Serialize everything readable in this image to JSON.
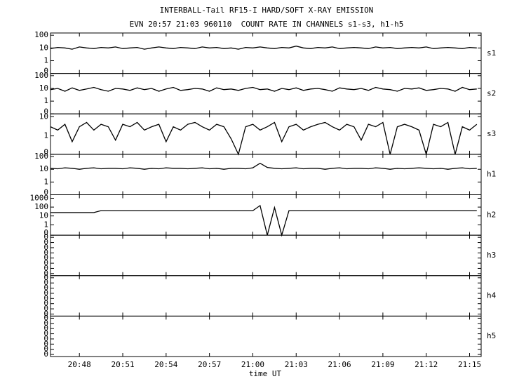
{
  "chart_data": {
    "type": "line",
    "title": "INTERBALL-Tail RF15-I HARD/SOFT X-RAY EMISSION",
    "subtitle": "EVN 20:57 21:03 960110  COUNT RATE IN CHANNELS s1-s3, h1-h5",
    "x_label": "time UT",
    "xlim": [
      46,
      75.8
    ],
    "xticks": [
      {
        "value": 48,
        "label": "20:48"
      },
      {
        "value": 51,
        "label": "20:51"
      },
      {
        "value": 54,
        "label": "20:54"
      },
      {
        "value": 57,
        "label": "20:57"
      },
      {
        "value": 60,
        "label": "21:00"
      },
      {
        "value": 63,
        "label": "21:03"
      },
      {
        "value": 66,
        "label": "21:06"
      },
      {
        "value": 69,
        "label": "21:09"
      },
      {
        "value": 72,
        "label": "21:12"
      },
      {
        "value": 75,
        "label": "21:15"
      }
    ],
    "log_scale": true,
    "color": "#000000",
    "x": [
      46,
      46.5,
      47,
      47.5,
      48,
      48.5,
      49,
      49.5,
      50,
      50.5,
      51,
      51.5,
      52,
      52.5,
      53,
      53.5,
      54,
      54.5,
      55,
      55.5,
      56,
      56.5,
      57,
      57.5,
      58,
      58.5,
      59,
      59.5,
      60,
      60.5,
      61,
      61.5,
      62,
      62.5,
      63,
      63.5,
      64,
      64.5,
      65,
      65.5,
      66,
      66.5,
      67,
      67.5,
      68,
      68.5,
      69,
      69.5,
      70,
      70.5,
      71,
      71.5,
      72,
      72.5,
      73,
      73.5,
      74,
      74.5,
      75,
      75.5
    ],
    "panels": [
      {
        "name": "s1",
        "ylim": [
          0.1,
          150
        ],
        "yticks": [
          0,
          1,
          10,
          100
        ],
        "values": [
          9,
          11,
          10,
          8,
          12,
          10,
          9,
          11,
          10,
          12,
          9,
          10,
          11,
          8,
          10,
          12,
          10,
          9,
          11,
          10,
          9,
          12,
          10,
          11,
          9,
          10,
          8,
          11,
          10,
          12,
          10,
          9,
          11,
          10,
          14,
          10,
          9,
          11,
          10,
          12,
          9,
          10,
          11,
          10,
          9,
          12,
          10,
          11,
          9,
          10,
          11,
          10,
          12,
          9,
          10,
          11,
          10,
          9,
          11,
          10
        ]
      },
      {
        "name": "s2",
        "ylim": [
          0.1,
          150
        ],
        "yticks": [
          0,
          1,
          10,
          100
        ],
        "values": [
          8,
          10,
          6,
          11,
          7,
          9,
          12,
          8,
          6,
          10,
          9,
          7,
          11,
          8,
          10,
          6,
          9,
          12,
          7,
          8,
          10,
          9,
          6,
          11,
          8,
          9,
          7,
          10,
          12,
          8,
          9,
          6,
          10,
          8,
          11,
          7,
          9,
          10,
          8,
          6,
          11,
          9,
          8,
          10,
          7,
          12,
          9,
          8,
          6,
          10,
          9,
          11,
          7,
          8,
          10,
          9,
          6,
          12,
          8,
          9
        ]
      },
      {
        "name": "s3",
        "ylim": [
          0.11,
          14
        ],
        "yticks": [
          0,
          1,
          10
        ],
        "values": [
          3,
          2,
          4,
          0.5,
          3,
          5,
          2,
          4,
          3,
          0.6,
          4,
          3,
          5,
          2,
          3,
          4,
          0.5,
          3,
          2,
          4,
          5,
          3,
          2,
          4,
          3,
          0.7,
          0,
          3,
          4,
          2,
          3,
          5,
          0.5,
          3,
          4,
          2,
          3,
          4,
          5,
          3,
          2,
          4,
          3,
          0.6,
          4,
          3,
          5,
          0,
          3,
          4,
          3,
          2,
          0,
          4,
          3,
          5,
          0,
          3,
          2,
          4
        ]
      },
      {
        "name": "h1",
        "ylim": [
          0.1,
          150
        ],
        "yticks": [
          0,
          1,
          10,
          100
        ],
        "values": [
          12,
          11,
          13,
          12,
          10,
          12,
          13,
          11,
          12,
          12,
          11,
          13,
          12,
          10,
          12,
          11,
          13,
          12,
          12,
          11,
          12,
          13,
          11,
          12,
          10,
          12,
          12,
          11,
          13,
          30,
          14,
          12,
          11,
          12,
          13,
          11,
          12,
          12,
          10,
          12,
          13,
          11,
          12,
          12,
          11,
          13,
          12,
          10,
          12,
          11,
          12,
          13,
          12,
          11,
          12,
          10,
          12,
          13,
          11,
          12
        ]
      },
      {
        "name": "h2",
        "ylim": [
          0.066,
          2500
        ],
        "yticks": [
          0,
          1,
          10,
          100,
          1000
        ],
        "values": [
          24,
          24,
          24,
          24,
          24,
          24,
          24,
          40,
          40,
          40,
          40,
          40,
          40,
          40,
          40,
          40,
          40,
          40,
          40,
          40,
          40,
          40,
          40,
          40,
          40,
          40,
          40,
          40,
          40,
          150,
          0,
          90,
          0,
          40,
          40,
          40,
          40,
          40,
          40,
          40,
          40,
          40,
          40,
          40,
          40,
          40,
          40,
          40,
          40,
          40,
          40,
          40,
          40,
          40,
          40,
          40,
          40,
          40,
          40,
          40
        ]
      },
      {
        "name": "h3",
        "ylim": [
          4e-09,
          0.26
        ],
        "yticks": [
          {
            "value": 1e-08,
            "label": "0"
          },
          {
            "value": 1e-07,
            "label": "0"
          },
          {
            "value": 1e-06,
            "label": "0"
          },
          {
            "value": 1e-05,
            "label": "0"
          },
          {
            "value": 0.0001,
            "label": "0"
          },
          {
            "value": 0.001,
            "label": "0"
          },
          {
            "value": 0.01,
            "label": "0"
          },
          {
            "value": 0.1,
            "label": "0"
          }
        ]
      },
      {
        "name": "h4",
        "ylim": [
          4e-09,
          0.26
        ],
        "yticks": [
          {
            "value": 1e-08,
            "label": "0"
          },
          {
            "value": 1e-07,
            "label": "0"
          },
          {
            "value": 1e-06,
            "label": "0"
          },
          {
            "value": 1e-05,
            "label": "0"
          },
          {
            "value": 0.0001,
            "label": "0"
          },
          {
            "value": 0.001,
            "label": "0"
          },
          {
            "value": 0.01,
            "label": "0"
          },
          {
            "value": 0.1,
            "label": "0"
          }
        ]
      },
      {
        "name": "h5",
        "ylim": [
          4e-09,
          0.26
        ],
        "yticks": [
          {
            "value": 1e-08,
            "label": "0"
          },
          {
            "value": 1e-07,
            "label": "0"
          },
          {
            "value": 1e-06,
            "label": "0"
          },
          {
            "value": 1e-05,
            "label": "0"
          },
          {
            "value": 0.0001,
            "label": "0"
          },
          {
            "value": 0.001,
            "label": "0"
          },
          {
            "value": 0.01,
            "label": "0"
          },
          {
            "value": 0.1,
            "label": "0"
          }
        ]
      }
    ]
  }
}
